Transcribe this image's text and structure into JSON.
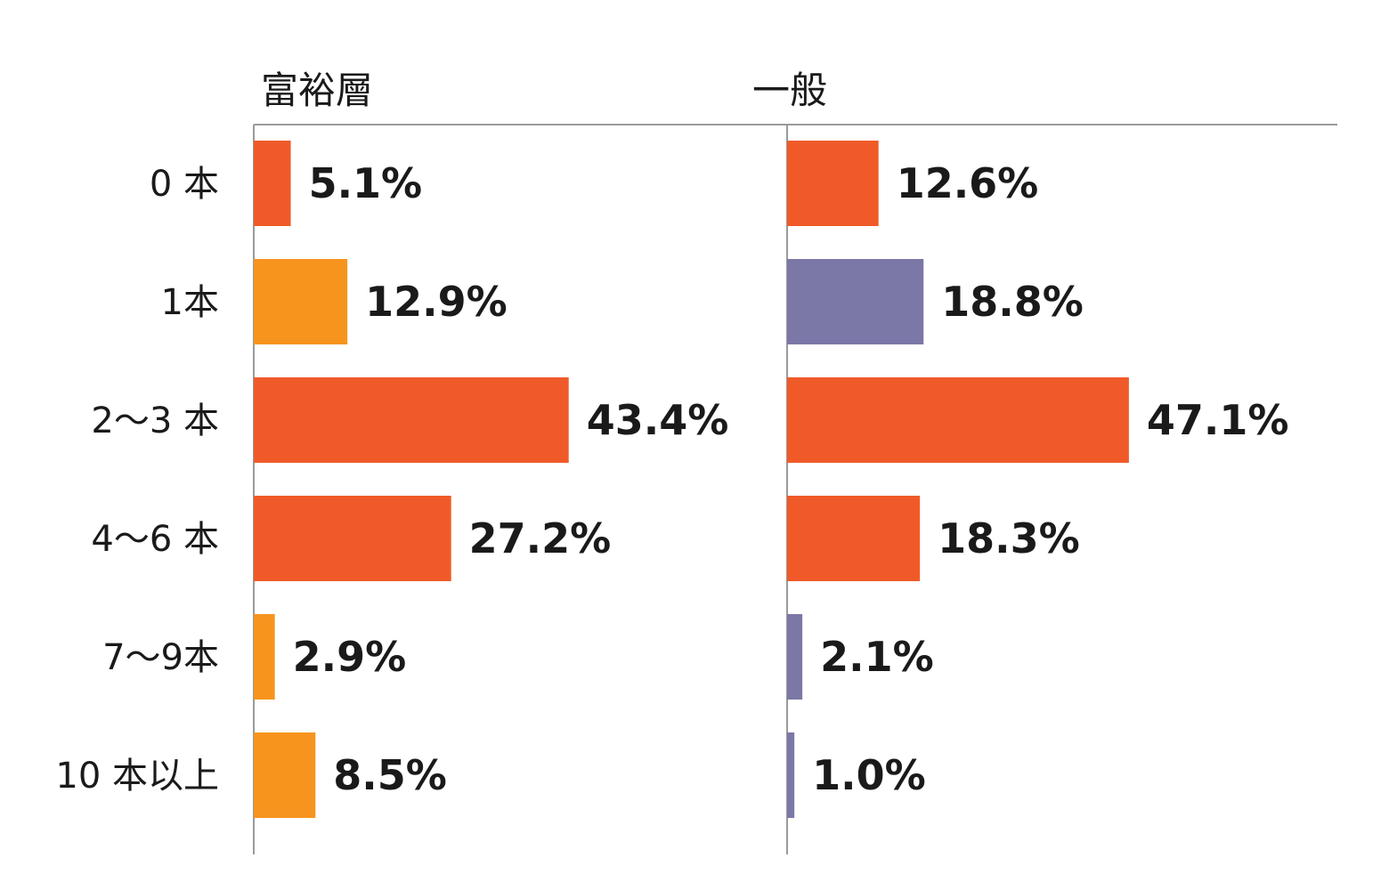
{
  "chart_data": {
    "type": "bar",
    "orientation": "horizontal",
    "categories": [
      "0 本",
      "1本",
      "2～3 本",
      "4～6 本",
      "7～9本",
      "10 本以上"
    ],
    "panels": [
      {
        "title": "富裕層",
        "values": [
          5.1,
          12.9,
          43.4,
          27.2,
          2.9,
          8.5
        ],
        "labels": [
          "5.1%",
          "12.9%",
          "43.4%",
          "27.2%",
          "2.9%",
          "8.5%"
        ],
        "colors": [
          "#F05A28",
          "#F7941E",
          "#F05A28",
          "#F05A28",
          "#F7941E",
          "#F7941E"
        ]
      },
      {
        "title": "一般",
        "values": [
          12.6,
          18.8,
          47.1,
          18.3,
          2.1,
          1.0
        ],
        "labels": [
          "12.6%",
          "18.8%",
          "47.1%",
          "18.3%",
          "2.1%",
          "1.0%"
        ],
        "colors": [
          "#F05A28",
          "#7B77A6",
          "#F05A28",
          "#F05A28",
          "#7B77A6",
          "#7B77A6"
        ]
      }
    ],
    "unit": "%",
    "xlim": [
      0,
      70
    ],
    "grid": false,
    "legend": "none"
  }
}
